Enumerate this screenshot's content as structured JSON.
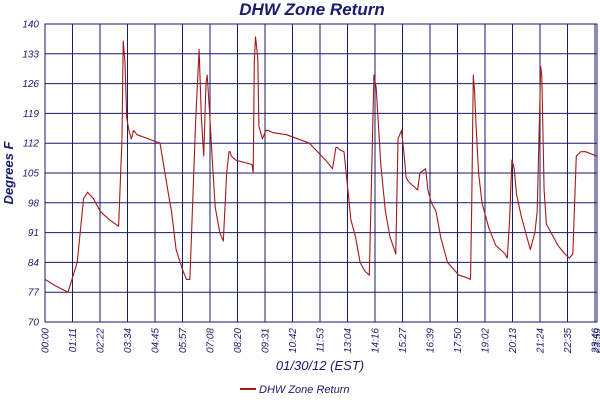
{
  "chart_data": {
    "type": "line",
    "title": "DHW Zone Return",
    "xlabel": "01/30/12 (EST)",
    "ylabel": "Degrees F",
    "ylim": [
      70,
      140
    ],
    "y_ticks": [
      "70",
      "77",
      "84",
      "91",
      "98",
      "105",
      "112",
      "119",
      "126",
      "133",
      "140"
    ],
    "x_ticks": [
      "00:00",
      "01:11",
      "02:22",
      "03:34",
      "04:45",
      "05:57",
      "07:08",
      "08:20",
      "09:31",
      "10:42",
      "11:53",
      "13:04",
      "14:16",
      "15:27",
      "16:39",
      "17:50",
      "19:02",
      "20:13",
      "21:24",
      "22:35",
      "23:46",
      "23:59"
    ],
    "grid": true,
    "colors": {
      "series": "#a01a1a",
      "grid": "#1a1a6e",
      "text": "#1a1a6e"
    },
    "legend_position": "bottom-center",
    "series": [
      {
        "name": "DHW Zone Return",
        "x": [
          0.0,
          0.45,
          1.0,
          1.4,
          1.68,
          1.85,
          2.1,
          2.4,
          2.8,
          3.2,
          3.35,
          3.4,
          3.48,
          3.55,
          3.65,
          3.75,
          3.85,
          4.0,
          4.5,
          5.0,
          5.4,
          5.5,
          5.7,
          6.0,
          6.15,
          6.3,
          6.55,
          6.7,
          6.8,
          6.9,
          7.0,
          7.05,
          7.15,
          7.25,
          7.4,
          7.6,
          7.75,
          7.9,
          8.0,
          8.05,
          8.1,
          8.3,
          9.0,
          9.05,
          9.1,
          9.15,
          9.25,
          9.3,
          9.45,
          9.6,
          9.65,
          9.7,
          9.9,
          10.5,
          11.5,
          12.2,
          12.5,
          12.65,
          12.72,
          12.8,
          13.0,
          13.3,
          13.5,
          13.7,
          13.9,
          14.1,
          14.2,
          14.3,
          14.4,
          14.6,
          14.8,
          15.0,
          15.25,
          15.35,
          15.5,
          15.6,
          15.7,
          15.8,
          16.2,
          16.3,
          16.55,
          16.65,
          16.8,
          17.0,
          17.1,
          17.2,
          17.5,
          18.0,
          18.3,
          18.5,
          18.55,
          18.62,
          18.68,
          18.75,
          18.85,
          19.0,
          19.3,
          19.6,
          20.0,
          20.1,
          20.2,
          20.3,
          20.4,
          20.5,
          20.7,
          21.0,
          21.1,
          21.3,
          21.4,
          21.55,
          21.6,
          21.7,
          21.8,
          22.0,
          22.3,
          22.6,
          22.8,
          22.95,
          23.1,
          23.3,
          23.5,
          23.99
        ],
        "y": [
          80,
          78.5,
          77,
          84,
          99,
          100.5,
          99,
          96,
          94,
          92.5,
          113,
          136,
          131,
          118,
          115,
          113,
          115,
          114,
          113,
          112,
          99,
          96,
          87,
          82,
          80,
          80,
          117,
          134,
          118,
          109,
          126,
          128,
          120,
          110,
          97,
          91,
          89,
          105,
          110,
          110,
          109,
          108,
          107,
          105,
          131,
          137,
          132,
          116,
          113,
          115,
          115,
          115,
          114.5,
          114,
          112,
          108,
          106,
          111,
          111,
          110.5,
          110,
          94,
          90,
          84,
          82,
          81,
          104,
          128,
          125,
          107,
          96,
          90,
          86,
          113,
          115,
          110,
          104,
          103,
          101,
          105,
          106,
          101,
          98,
          96,
          93,
          90,
          84,
          81,
          80.5,
          80,
          97,
          128,
          124,
          115,
          105,
          98,
          92,
          88,
          86,
          85,
          94,
          108,
          106,
          100,
          95,
          89,
          87,
          91,
          96,
          130,
          128,
          101,
          93,
          91,
          88,
          86,
          85,
          86,
          109,
          110,
          110,
          109
        ]
      }
    ]
  }
}
